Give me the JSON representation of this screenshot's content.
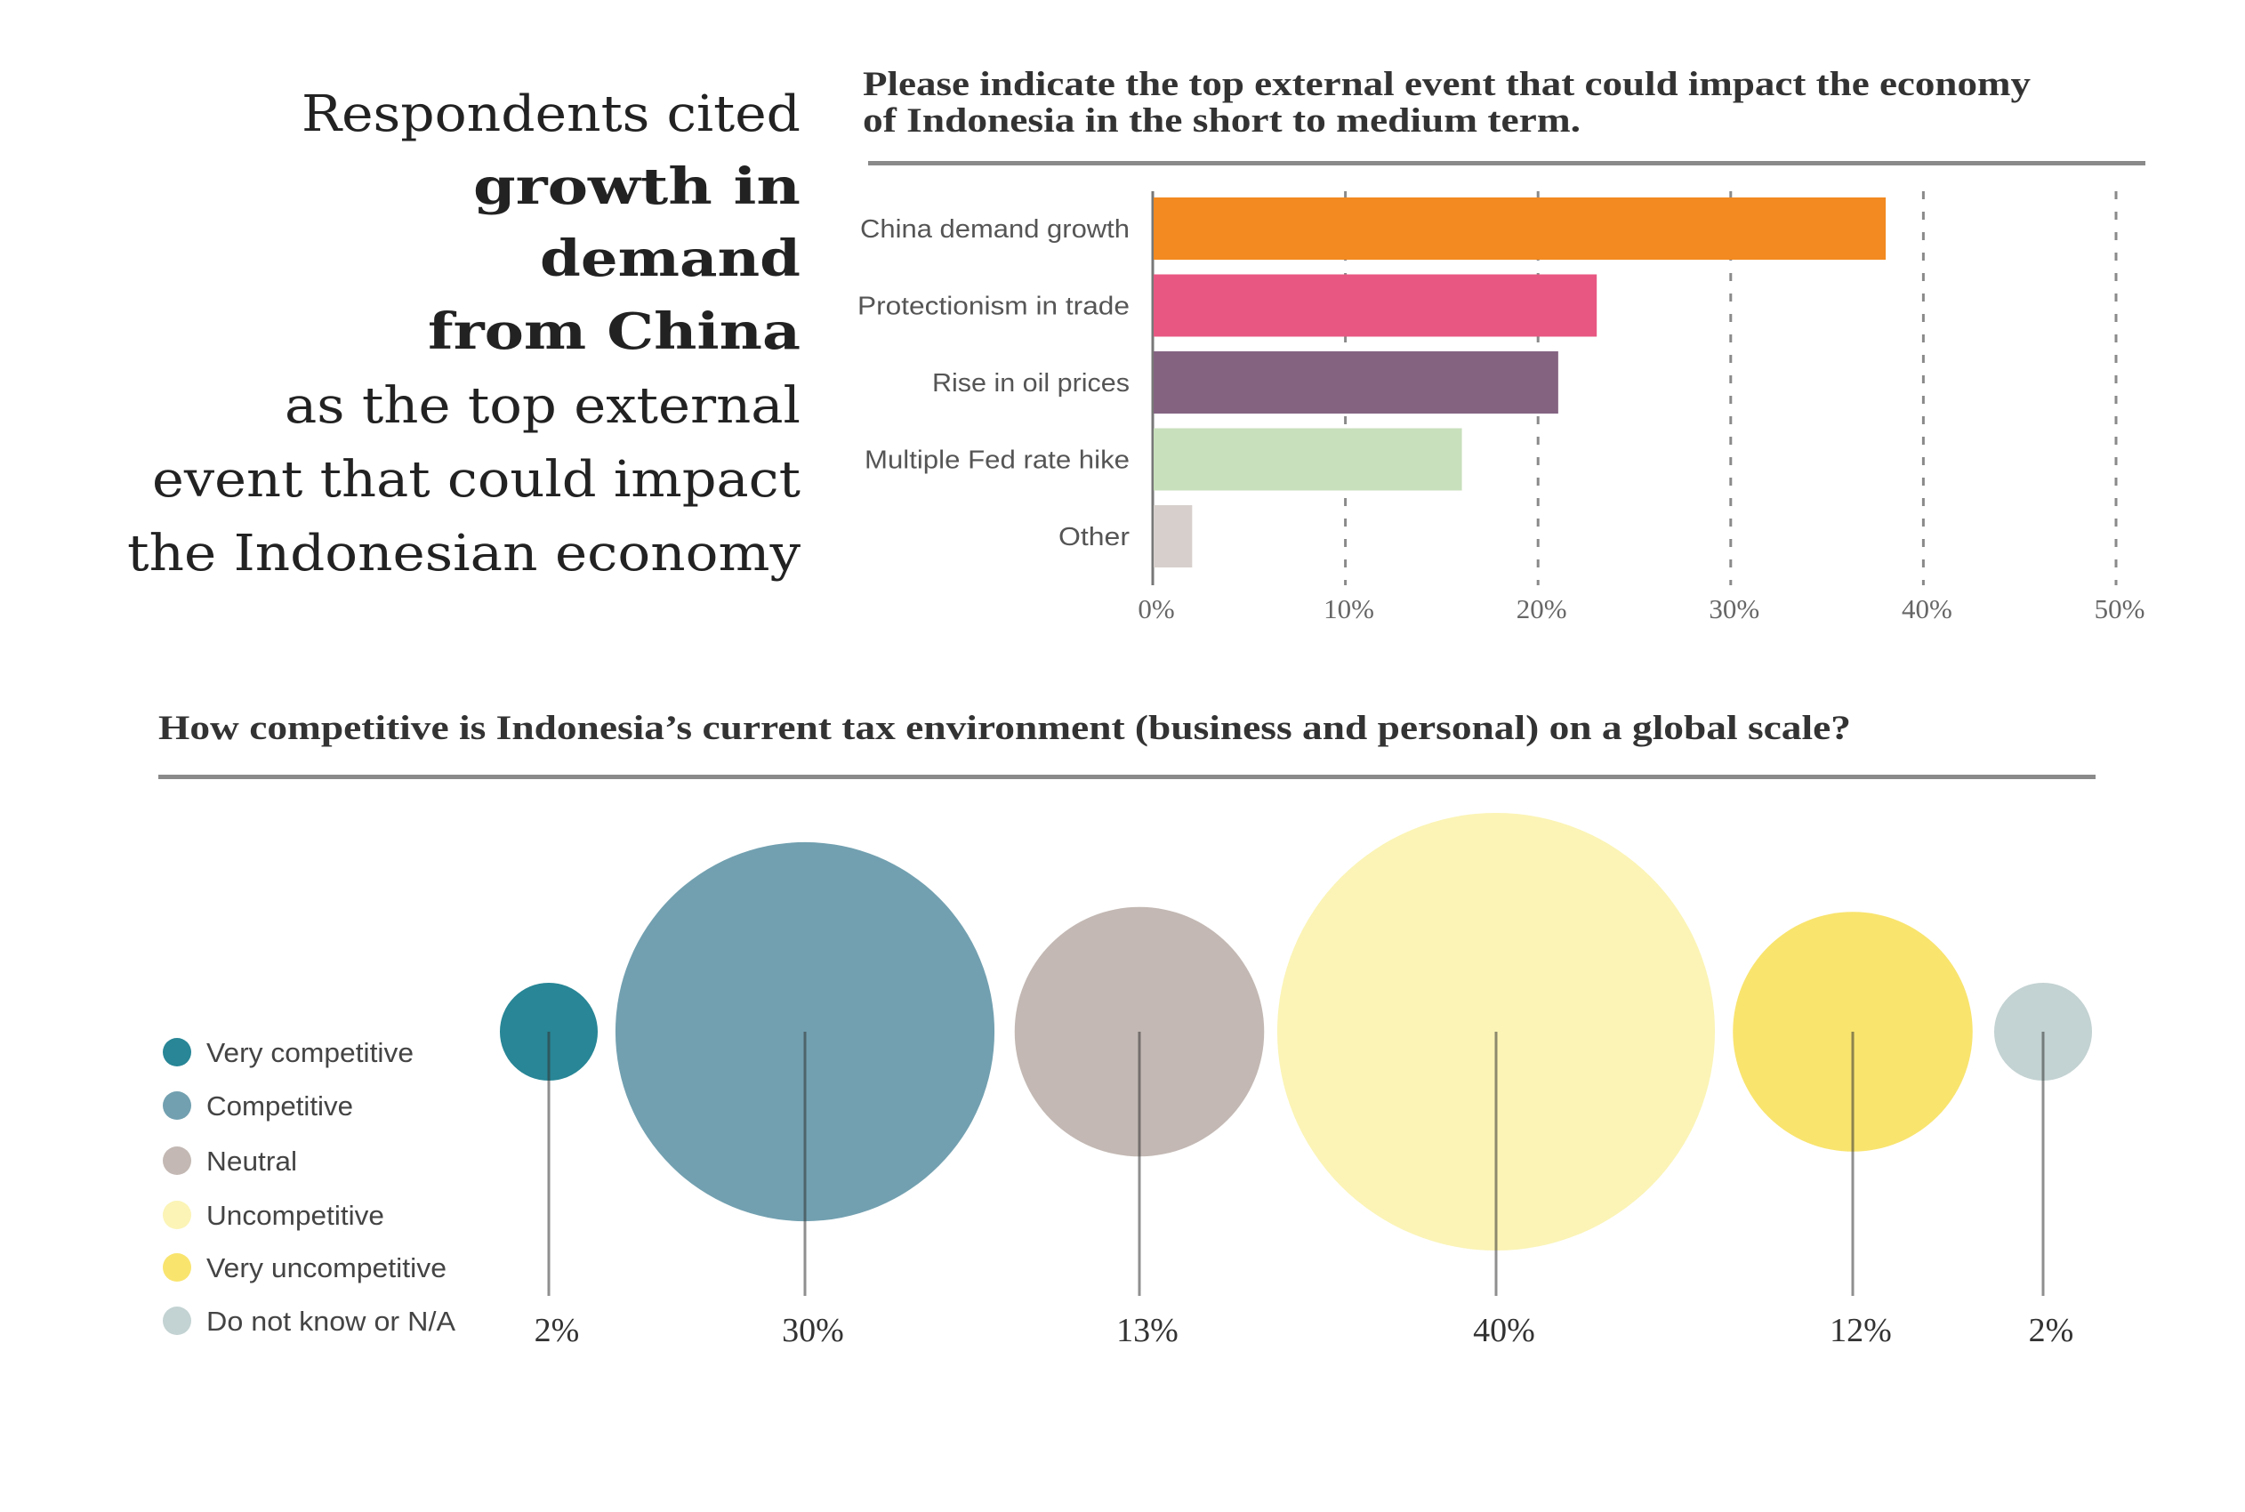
{
  "headline": {
    "lines": [
      {
        "text": "Respondents cited",
        "highlight": false
      },
      {
        "text": "growth in",
        "highlight": true
      },
      {
        "text": "demand",
        "highlight": true
      },
      {
        "text": "from China",
        "highlight": true
      },
      {
        "text": "as the top external",
        "highlight": false
      },
      {
        "text": "event that could impact",
        "highlight": false
      },
      {
        "text": "the Indonesian economy",
        "highlight": false
      }
    ],
    "text_color": "#222222",
    "highlight_color": "#0AAEEF"
  },
  "chart_data": [
    {
      "type": "bar",
      "orientation": "horizontal",
      "title_lines": [
        "Please indicate the top external event that could impact the economy",
        "of Indonesia in the short to medium term."
      ],
      "categories": [
        "China demand growth",
        "Protectionism in trade",
        "Rise in oil prices",
        "Multiple Fed rate hike",
        "Other"
      ],
      "values": [
        38,
        23,
        21,
        16,
        2
      ],
      "colors": [
        "#F28A21",
        "#E85782",
        "#846381",
        "#C8E0BC",
        "#D6CFCB"
      ],
      "xlim": [
        0,
        50
      ],
      "xticks": [
        0,
        10,
        20,
        30,
        40,
        50
      ],
      "xtick_labels": [
        "0%",
        "10%",
        "20%",
        "30%",
        "40%",
        "50%"
      ],
      "grid": "dashed vertical",
      "xlabel": "",
      "ylabel": ""
    },
    {
      "type": "bubble",
      "title": "How competitive is Indonesia’s current tax environment (business and personal) on a global scale?",
      "categories": [
        "Very competitive",
        "Competitive",
        "Neutral",
        "Uncompetitive",
        "Very uncompetitive",
        "Do not know or N/A"
      ],
      "values": [
        2,
        30,
        13,
        40,
        12,
        2
      ],
      "value_labels": [
        "2%",
        "30%",
        "13%",
        "40%",
        "12%",
        "2%"
      ],
      "colors": [
        "#288696",
        "#72A0B0",
        "#C3B8B3",
        "#FBF4B6",
        "#F9E46E",
        "#C3D2D2"
      ],
      "legend": "left",
      "unit": "%"
    }
  ]
}
